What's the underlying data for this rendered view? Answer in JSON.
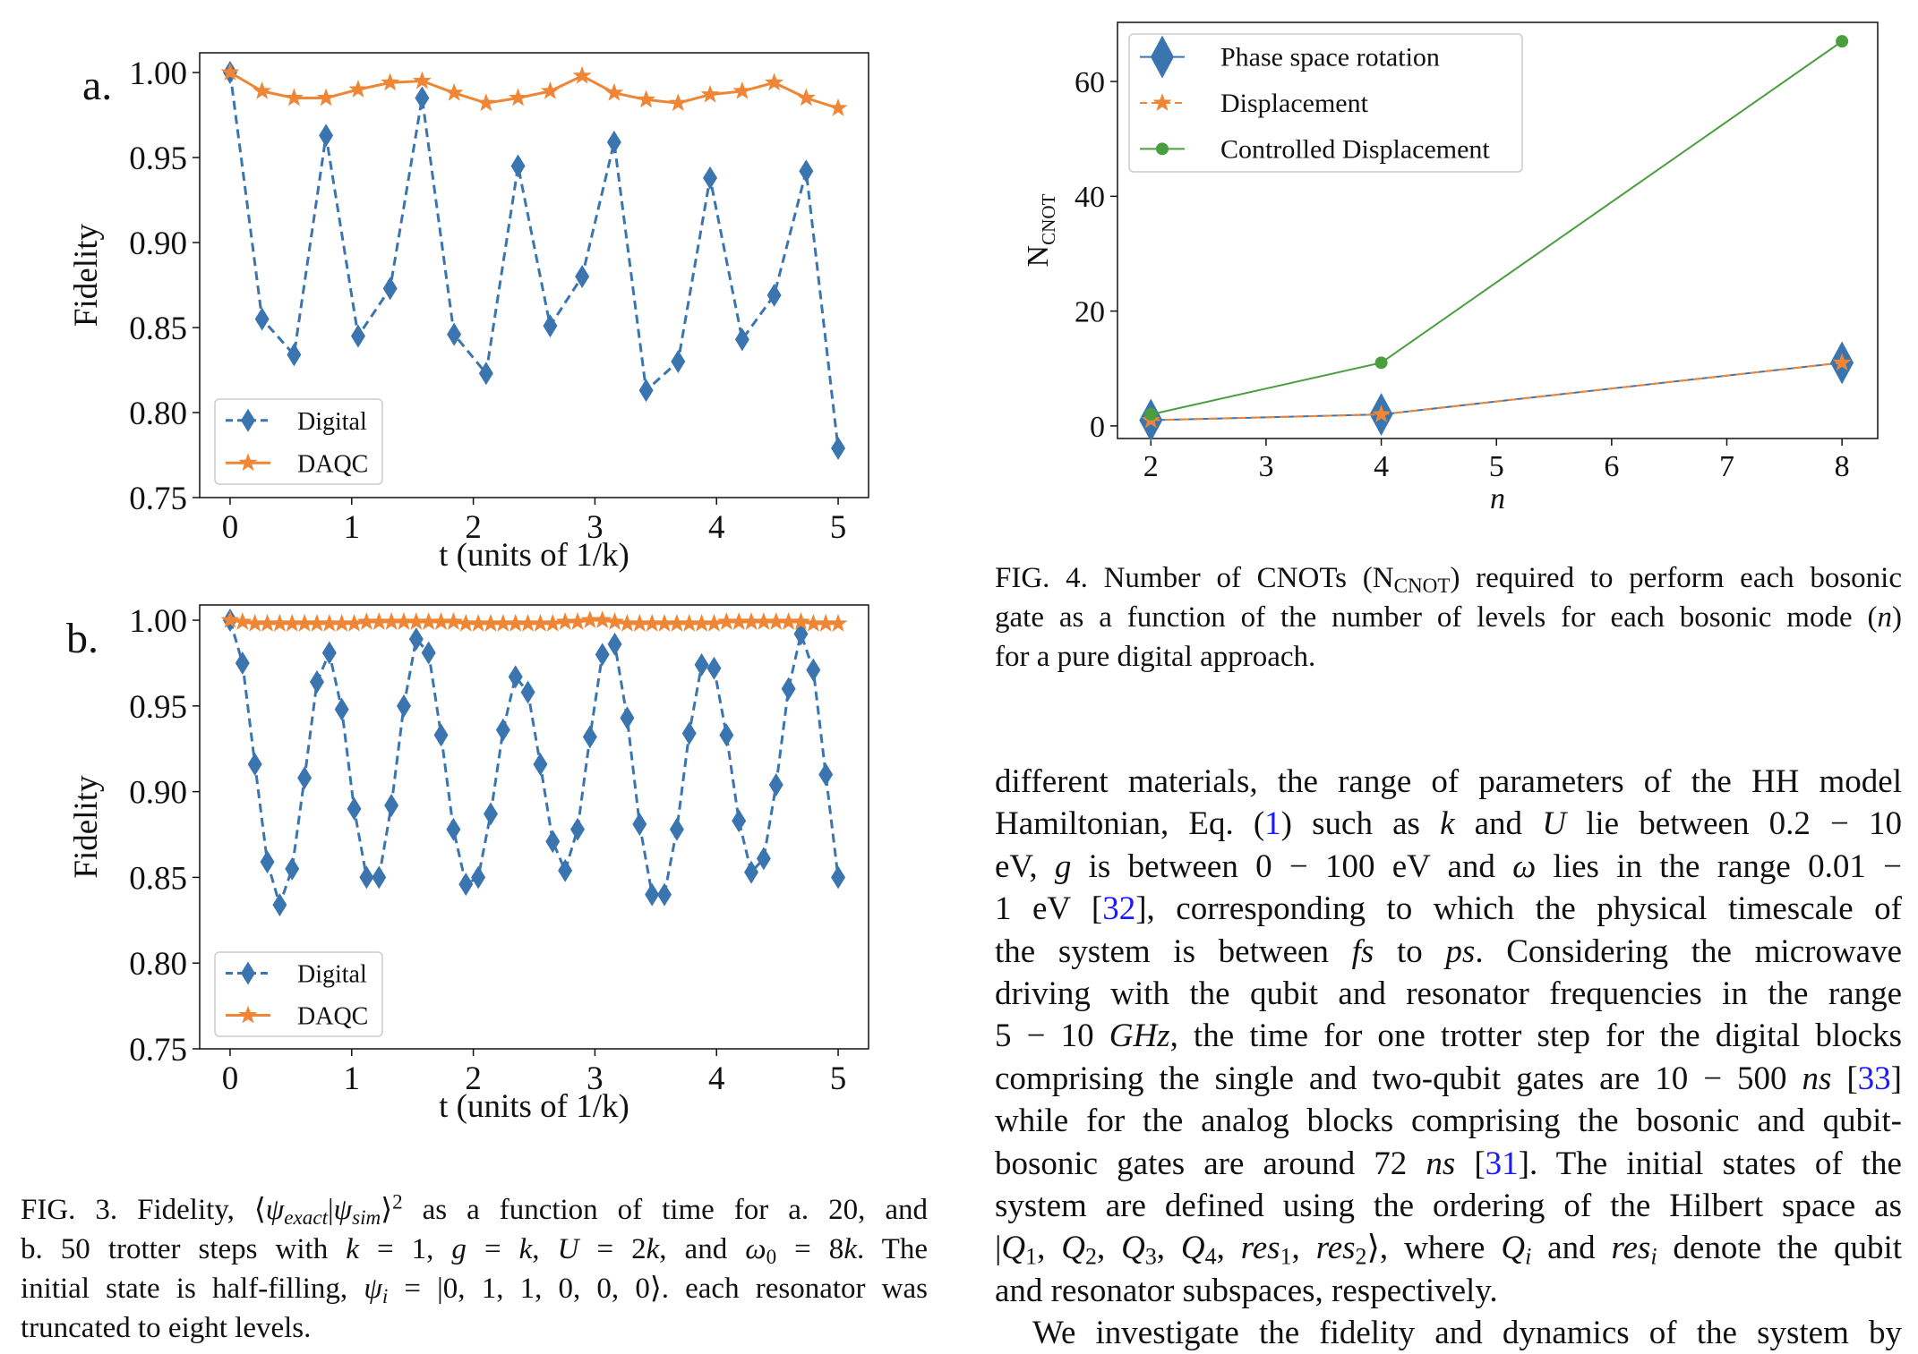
{
  "figure3": {
    "panel_a_label": "a.",
    "panel_b_label": "b.",
    "caption_lines": [
      [
        {
          "t": "FIG. 3.  Fidelity, ⟨"
        },
        {
          "t": "ψ",
          "i": 1
        },
        {
          "t": "exact",
          "i": 1,
          "sub": 1
        },
        {
          "t": "|"
        },
        {
          "t": "ψ",
          "i": 1
        },
        {
          "t": "sim",
          "i": 1,
          "sub": 1
        },
        {
          "t": "⟩"
        },
        {
          "t": "2",
          "sup": 1
        },
        {
          "t": " as a function of time for a.  20, and"
        }
      ],
      [
        {
          "t": "b.  50 trotter steps with "
        },
        {
          "t": "k",
          "i": 1
        },
        {
          "t": " = 1, "
        },
        {
          "t": "g",
          "i": 1
        },
        {
          "t": " = "
        },
        {
          "t": "k",
          "i": 1
        },
        {
          "t": ", "
        },
        {
          "t": "U",
          "i": 1
        },
        {
          "t": " = 2"
        },
        {
          "t": "k",
          "i": 1
        },
        {
          "t": ", and "
        },
        {
          "t": "ω",
          "i": 1
        },
        {
          "t": "0",
          "sub": 1
        },
        {
          "t": " = 8"
        },
        {
          "t": "k",
          "i": 1
        },
        {
          "t": ".  The"
        }
      ],
      [
        {
          "t": "initial state is half-filling, "
        },
        {
          "t": "ψ",
          "i": 1
        },
        {
          "t": "i",
          "i": 1,
          "sub": 1
        },
        {
          "t": " = |0, 1, 1, 0, 0, 0⟩.  each resonator was"
        }
      ],
      [
        {
          "t": "truncated to eight levels."
        }
      ]
    ]
  },
  "figure4": {
    "caption_lines": [
      [
        {
          "t": "FIG. 4. Number of CNOTs (N"
        },
        {
          "t": "CNOT",
          "sub": 1
        },
        {
          "t": ") required to perform each bosonic"
        }
      ],
      [
        {
          "t": "gate as a function of the number of levels for each bosonic mode ("
        },
        {
          "t": "n",
          "i": 1
        },
        {
          "t": ")"
        }
      ],
      [
        {
          "t": "for a pure digital approach."
        }
      ]
    ]
  },
  "body_text": [
    [
      {
        "t": "different materials, the range of parameters of the HH model"
      }
    ],
    [
      {
        "t": "Hamiltonian, Eq.  ("
      },
      {
        "t": "1",
        "link": 1
      },
      {
        "t": ") such as "
      },
      {
        "t": "k",
        "i": 1
      },
      {
        "t": " and "
      },
      {
        "t": "U",
        "i": 1
      },
      {
        "t": " lie between 0.2 − 10"
      }
    ],
    [
      {
        "t": "eV, "
      },
      {
        "t": "g",
        "i": 1
      },
      {
        "t": " is between 0 − 100 eV and "
      },
      {
        "t": "ω",
        "i": 1
      },
      {
        "t": " lies in the range 0.01 −"
      }
    ],
    [
      {
        "t": "1 eV ["
      },
      {
        "t": "32",
        "link": 1
      },
      {
        "t": "], corresponding to which the physical timescale of"
      }
    ],
    [
      {
        "t": "the system is between "
      },
      {
        "t": "fs",
        "i": 1
      },
      {
        "t": " to "
      },
      {
        "t": "ps",
        "i": 1
      },
      {
        "t": ".  Considering the microwave"
      }
    ],
    [
      {
        "t": "driving with the qubit and resonator frequencies in the range"
      }
    ],
    [
      {
        "t": "5 − 10 "
      },
      {
        "t": "GHz",
        "i": 1
      },
      {
        "t": ", the time for one trotter step for the digital blocks"
      }
    ],
    [
      {
        "t": "comprising the single and two-qubit gates are 10 − 500 "
      },
      {
        "t": "ns",
        "i": 1
      },
      {
        "t": " ["
      },
      {
        "t": "33",
        "link": 1
      },
      {
        "t": "]"
      }
    ],
    [
      {
        "t": "while for the analog blocks comprising the bosonic and qubit-"
      }
    ],
    [
      {
        "t": "bosonic gates are around 72 "
      },
      {
        "t": "ns",
        "i": 1
      },
      {
        "t": " ["
      },
      {
        "t": "31",
        "link": 1
      },
      {
        "t": "].  The initial states of the"
      }
    ],
    [
      {
        "t": "system are defined using the ordering of the Hilbert space as"
      }
    ],
    [
      {
        "t": "|"
      },
      {
        "t": "Q",
        "i": 1
      },
      {
        "t": "1",
        "sub": 1
      },
      {
        "t": ", "
      },
      {
        "t": "Q",
        "i": 1
      },
      {
        "t": "2",
        "sub": 1
      },
      {
        "t": ", "
      },
      {
        "t": "Q",
        "i": 1
      },
      {
        "t": "3",
        "sub": 1
      },
      {
        "t": ", "
      },
      {
        "t": "Q",
        "i": 1
      },
      {
        "t": "4",
        "sub": 1
      },
      {
        "t": ", "
      },
      {
        "t": "res",
        "i": 1
      },
      {
        "t": "1",
        "sub": 1
      },
      {
        "t": ", "
      },
      {
        "t": "res",
        "i": 1
      },
      {
        "t": "2",
        "sub": 1
      },
      {
        "t": "⟩, where "
      },
      {
        "t": "Q",
        "i": 1
      },
      {
        "t": "i",
        "i": 1,
        "sub": 1
      },
      {
        "t": " and "
      },
      {
        "t": "res",
        "i": 1
      },
      {
        "t": "i",
        "i": 1,
        "sub": 1
      },
      {
        "t": " denote the qubit"
      }
    ],
    [
      {
        "t": "and resonator subspaces, respectively."
      }
    ],
    [
      {
        "t": "We investigate the fidelity and dynamics of the system by"
      }
    ]
  ],
  "colors": {
    "blue": "#3b75af",
    "orange": "#ef8636",
    "green": "#4a9e3f"
  },
  "chart_data": [
    {
      "id": "fig3a",
      "type": "line",
      "title": "",
      "xlabel": "t (units of 1/k)",
      "ylabel": "Fidelity",
      "xlim": [
        -0.25,
        5.25
      ],
      "ylim": [
        0.75,
        1.0116
      ],
      "xticks": [
        "0",
        "1",
        "2",
        "3",
        "4",
        "5"
      ],
      "yticks": [
        "0.75",
        "0.80",
        "0.85",
        "0.90",
        "0.95",
        "1.00"
      ],
      "legend_position": "lower-left",
      "x": [
        0,
        0.263,
        0.526,
        0.789,
        1.053,
        1.316,
        1.579,
        1.842,
        2.105,
        2.368,
        2.632,
        2.895,
        3.158,
        3.421,
        3.684,
        3.947,
        4.211,
        4.474,
        4.737,
        5.0
      ],
      "series": [
        {
          "name": "Digital",
          "marker": "diamond",
          "style": "dashed",
          "color": "blue",
          "values": [
            1.0,
            0.855,
            0.834,
            0.963,
            0.845,
            0.873,
            0.985,
            0.846,
            0.823,
            0.945,
            0.851,
            0.88,
            0.959,
            0.813,
            0.83,
            0.938,
            0.843,
            0.869,
            0.942,
            0.779
          ]
        },
        {
          "name": "DAQC",
          "marker": "star",
          "style": "solid",
          "color": "orange",
          "values": [
            1.0,
            0.989,
            0.985,
            0.985,
            0.99,
            0.994,
            0.995,
            0.988,
            0.982,
            0.985,
            0.989,
            0.998,
            0.988,
            0.984,
            0.982,
            0.987,
            0.989,
            0.994,
            0.985,
            0.979
          ]
        }
      ]
    },
    {
      "id": "fig3b",
      "type": "line",
      "title": "",
      "xlabel": "t (units of 1/k)",
      "ylabel": "Fidelity",
      "xlim": [
        -0.25,
        5.25
      ],
      "ylim": [
        0.75,
        1.0089
      ],
      "xticks": [
        "0",
        "1",
        "2",
        "3",
        "4",
        "5"
      ],
      "yticks": [
        "0.75",
        "0.80",
        "0.85",
        "0.90",
        "0.95",
        "1.00"
      ],
      "legend_position": "lower-left",
      "x_start": 0,
      "x_end": 5,
      "n_points": 50,
      "series": [
        {
          "name": "Digital",
          "marker": "diamond",
          "style": "dashed",
          "color": "blue",
          "values": [
            1.0,
            0.975,
            0.916,
            0.859,
            0.834,
            0.855,
            0.908,
            0.964,
            0.981,
            0.948,
            0.89,
            0.85,
            0.85,
            0.892,
            0.95,
            0.989,
            0.981,
            0.933,
            0.878,
            0.846,
            0.85,
            0.887,
            0.936,
            0.967,
            0.958,
            0.916,
            0.871,
            0.854,
            0.878,
            0.932,
            0.98,
            0.986,
            0.943,
            0.881,
            0.84,
            0.84,
            0.878,
            0.934,
            0.974,
            0.972,
            0.933,
            0.883,
            0.853,
            0.861,
            0.904,
            0.96,
            0.992,
            0.971,
            0.91,
            0.85
          ]
        },
        {
          "name": "DAQC",
          "marker": "star",
          "style": "solid",
          "color": "orange",
          "values": [
            1.0,
            0.999,
            0.998,
            0.998,
            0.998,
            0.998,
            0.998,
            0.998,
            0.998,
            0.998,
            0.998,
            0.999,
            0.999,
            0.999,
            0.999,
            0.999,
            0.999,
            0.999,
            0.999,
            0.998,
            0.998,
            0.998,
            0.998,
            0.998,
            0.998,
            0.998,
            0.998,
            0.999,
            0.999,
            1.0,
            1.0,
            0.999,
            0.998,
            0.998,
            0.998,
            0.998,
            0.998,
            0.998,
            0.998,
            0.998,
            0.999,
            0.999,
            0.999,
            0.999,
            0.999,
            0.999,
            0.999,
            0.998,
            0.998,
            0.998
          ]
        }
      ]
    },
    {
      "id": "fig4",
      "type": "line",
      "title": "",
      "xlabel": "n",
      "ylabel": "N",
      "ylabel_sub": "CNOT",
      "xlim": [
        1.71,
        8.31
      ],
      "ylim": [
        -2.2,
        70.3
      ],
      "xticks": [
        "2",
        "3",
        "4",
        "5",
        "6",
        "7",
        "8"
      ],
      "yticks": [
        "0",
        "20",
        "40",
        "60"
      ],
      "legend_position": "upper-left",
      "x": [
        2,
        4,
        8
      ],
      "series": [
        {
          "name": "Phase space rotation",
          "marker": "bigdiamond",
          "style": "solid",
          "color": "blue",
          "values": [
            1,
            2,
            11
          ]
        },
        {
          "name": "Displacement",
          "marker": "star",
          "style": "dashed",
          "color": "orange",
          "values": [
            1,
            2,
            11
          ]
        },
        {
          "name": "Controlled Displacement",
          "marker": "circle",
          "style": "solid",
          "color": "green",
          "values": [
            2,
            11,
            67
          ]
        }
      ]
    }
  ]
}
